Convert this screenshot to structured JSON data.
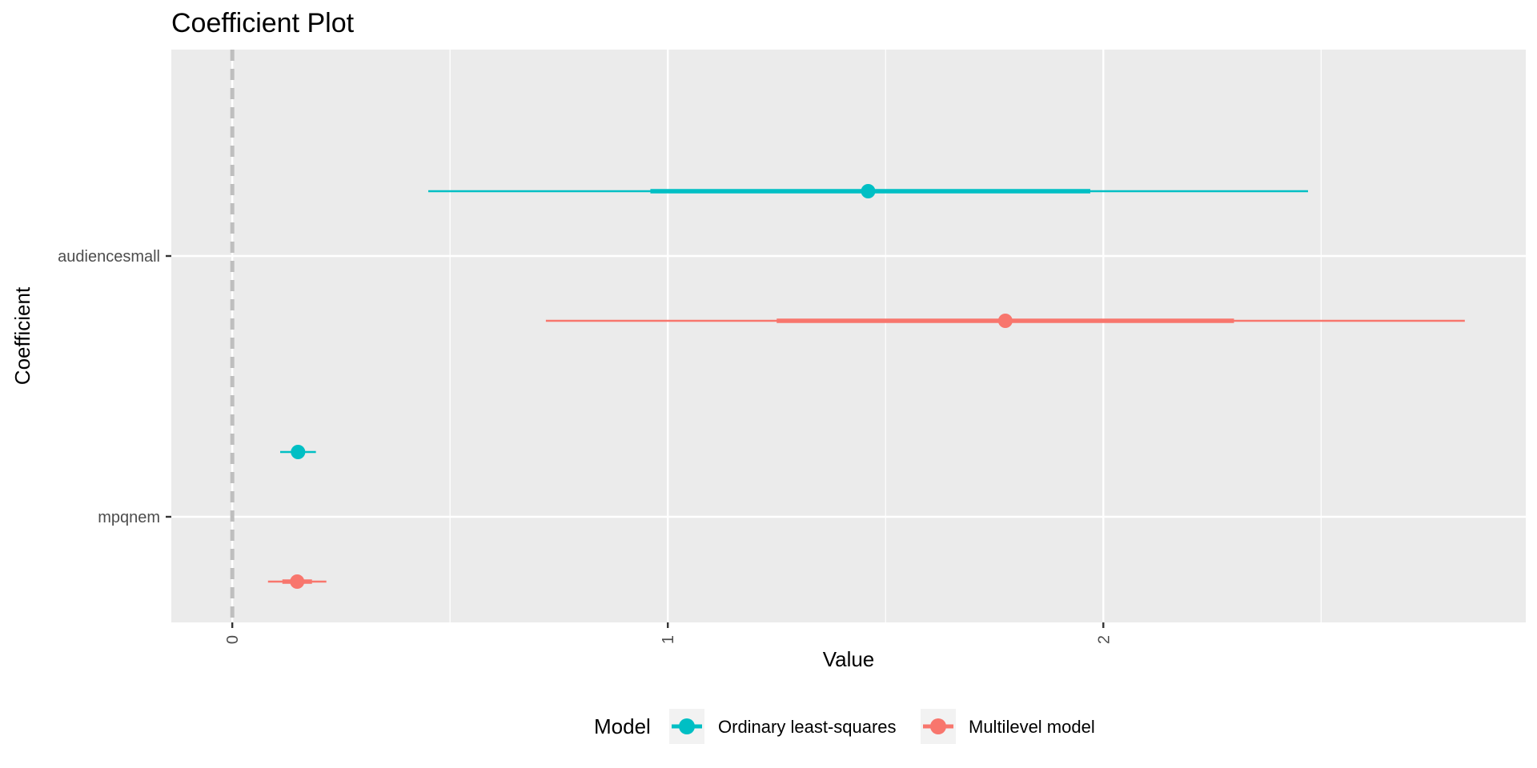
{
  "chart_data": {
    "type": "coefficient-plot",
    "title": "Coefficient Plot",
    "xlabel": "Value",
    "ylabel": "Coefficient",
    "x_ticks": [
      "0",
      "1",
      "2"
    ],
    "y_categories": [
      "audiencesmall",
      "mpqnem"
    ],
    "xlim": [
      -0.14,
      2.97
    ],
    "reference_line": 0,
    "grid": true,
    "legend": {
      "title": "Model",
      "position": "bottom",
      "entries": [
        "Ordinary least-squares",
        "Multilevel model"
      ]
    },
    "series": [
      {
        "name": "Ordinary least-squares",
        "color": "#00BFC4",
        "points": [
          {
            "coefficient": "audiencesmall",
            "estimate": 1.46,
            "inner": [
              0.96,
              1.97
            ],
            "outer": [
              0.45,
              2.47
            ]
          },
          {
            "coefficient": "mpqnem",
            "estimate": 0.151,
            "inner": [
              0.135,
              0.167
            ],
            "outer": [
              0.11,
              0.192
            ]
          }
        ]
      },
      {
        "name": "Multilevel model",
        "color": "#F8766D",
        "points": [
          {
            "coefficient": "audiencesmall",
            "estimate": 1.775,
            "inner": [
              1.25,
              2.3
            ],
            "outer": [
              0.72,
              2.83
            ]
          },
          {
            "coefficient": "mpqnem",
            "estimate": 0.149,
            "inner": [
              0.115,
              0.183
            ],
            "outer": [
              0.082,
              0.216
            ]
          }
        ]
      }
    ]
  }
}
